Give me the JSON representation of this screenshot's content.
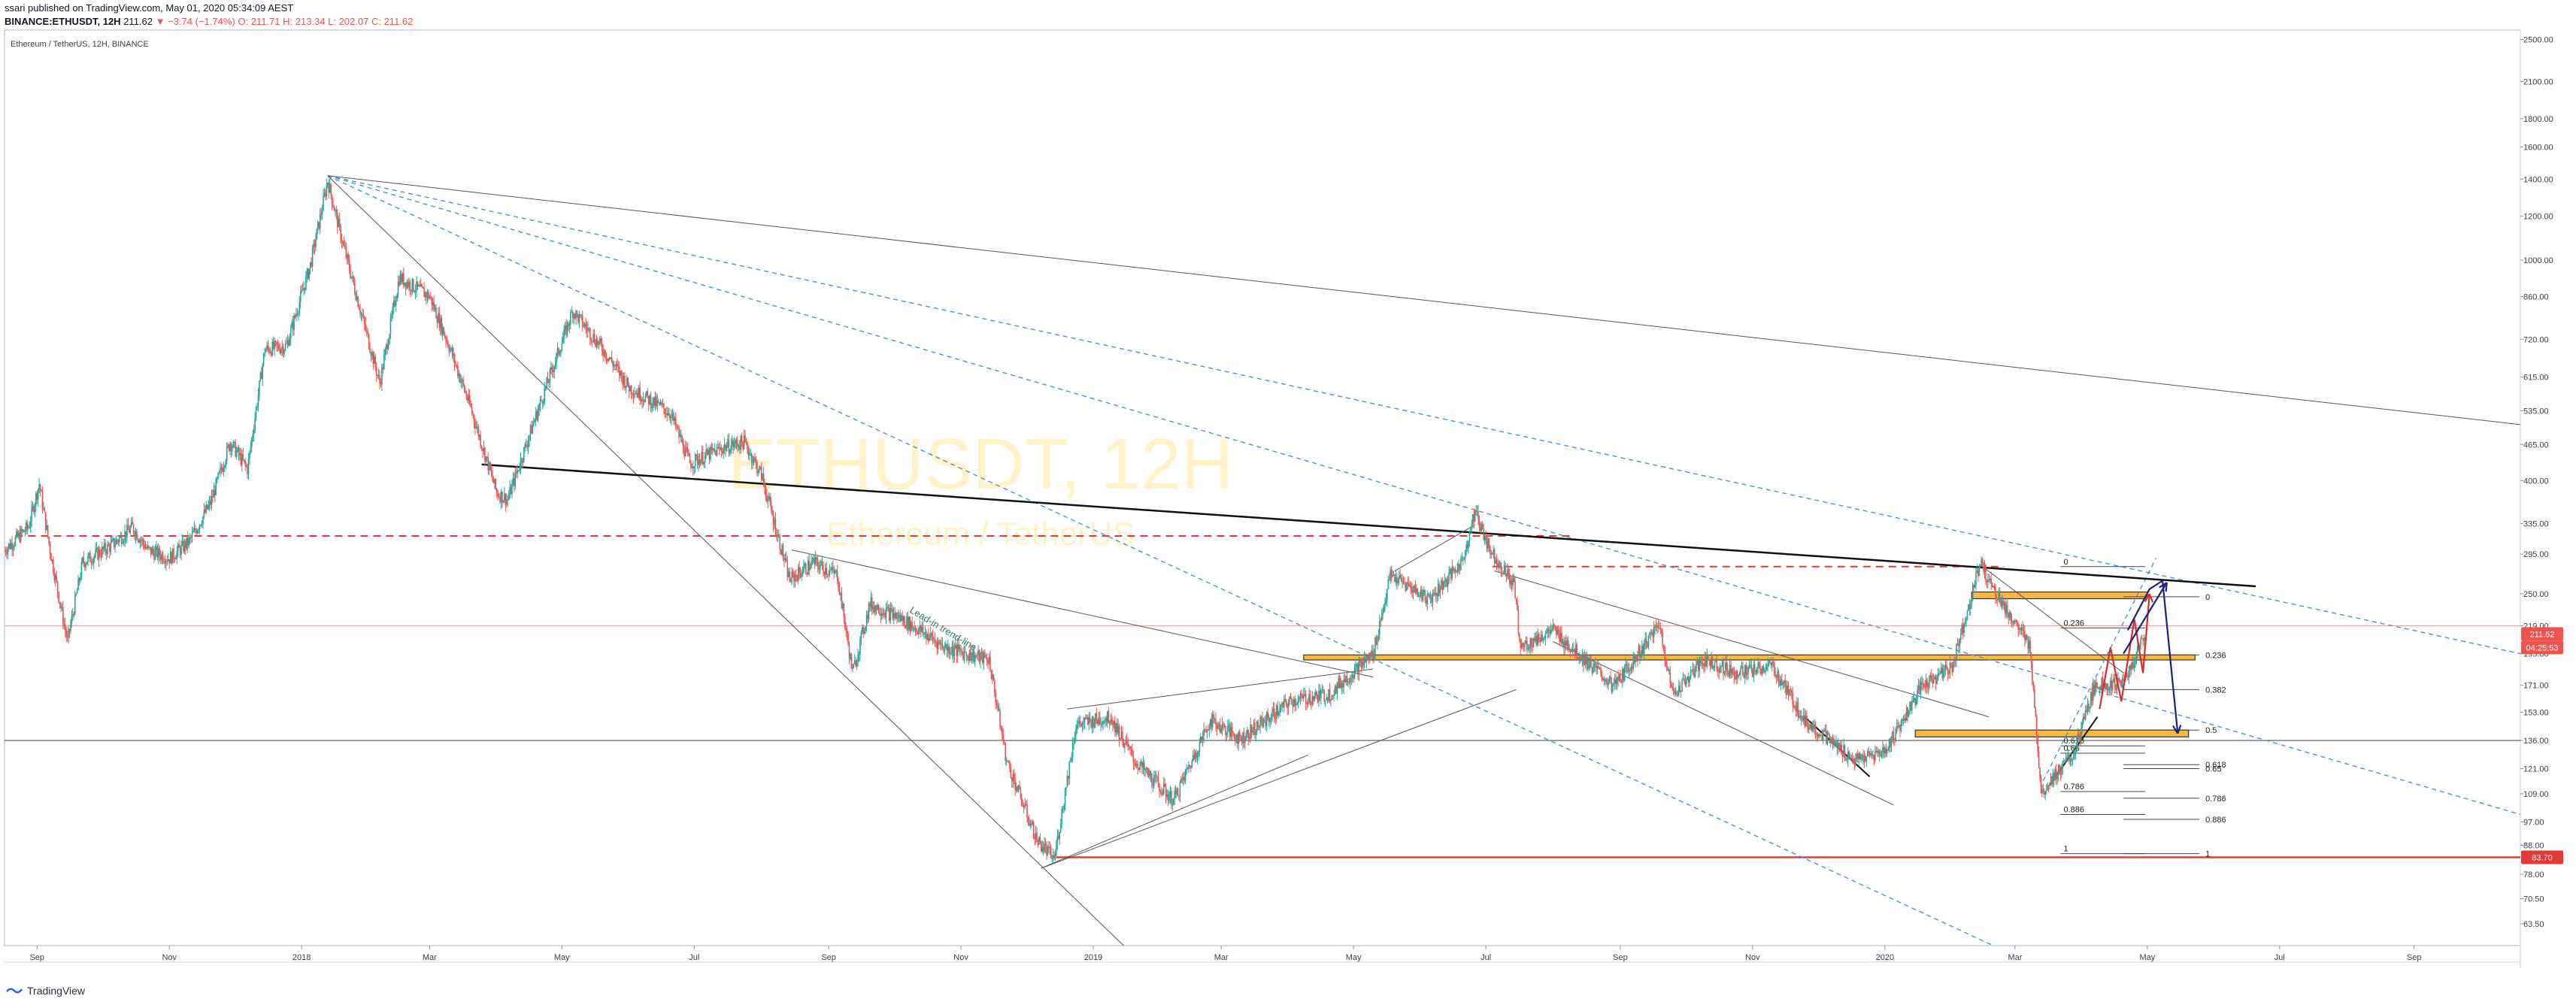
{
  "header": {
    "published": "ssari published on TradingView.com, May 01, 2020 05:34:09 AEST",
    "symbol": "BINANCE:ETHUSDT, 12H",
    "price": "211.62",
    "change": "▼ −3.74 (−1.74%)",
    "o": "O: 211.71",
    "h": "H: 213.34",
    "l": "L: 202.07",
    "c": "C: 211.62"
  },
  "chart_title": "Ethereum / TetherUS, 12H, BINANCE",
  "watermark": {
    "main": "ETHUSDT, 12H",
    "sub": "Ethereum / TetherUS"
  },
  "footer": {
    "brand": "TradingView"
  },
  "colors": {
    "up": "#26a69a",
    "down": "#ef5350",
    "accent": "#2962ff",
    "zone": "#f5b945"
  },
  "chart_data": {
    "type": "candlestick",
    "symbol": "ETHUSDT",
    "interval": "12H",
    "exchange": "BINANCE",
    "y_scale": "log",
    "ylim": [
      58,
      2600
    ],
    "x_range": [
      "2017-08-17",
      "2020-10-20"
    ],
    "x_ticks": [
      {
        "label": "Sep",
        "date": "2017-09-01"
      },
      {
        "label": "Nov",
        "date": "2017-11-01"
      },
      {
        "label": "2018",
        "date": "2018-01-01"
      },
      {
        "label": "Mar",
        "date": "2018-03-01"
      },
      {
        "label": "May",
        "date": "2018-05-01"
      },
      {
        "label": "Jul",
        "date": "2018-07-01"
      },
      {
        "label": "Sep",
        "date": "2018-09-01"
      },
      {
        "label": "Nov",
        "date": "2018-11-01"
      },
      {
        "label": "2019",
        "date": "2019-01-01"
      },
      {
        "label": "Mar",
        "date": "2019-03-01"
      },
      {
        "label": "May",
        "date": "2019-05-01"
      },
      {
        "label": "Jul",
        "date": "2019-07-01"
      },
      {
        "label": "Sep",
        "date": "2019-09-01"
      },
      {
        "label": "Nov",
        "date": "2019-11-01"
      },
      {
        "label": "2020",
        "date": "2020-01-01"
      },
      {
        "label": "Mar",
        "date": "2020-03-01"
      },
      {
        "label": "May",
        "date": "2020-05-01"
      },
      {
        "label": "Jul",
        "date": "2020-07-01"
      },
      {
        "label": "Sep",
        "date": "2020-09-01"
      }
    ],
    "y_ticks": [
      "2500.00",
      "2100.00",
      "1800.00",
      "1600.00",
      "1400.00",
      "1200.00",
      "1000.00",
      "860.00",
      "720.00",
      "615.00",
      "535.00",
      "465.00",
      "400.00",
      "335.00",
      "295.00",
      "250.00",
      "219.00",
      "195.00",
      "171.00",
      "153.00",
      "136.00",
      "121.00",
      "109.00",
      "97.00",
      "88.00",
      "78.00",
      "70.50",
      "63.50"
    ],
    "price_path": [
      [
        "2017-08-17",
        300
      ],
      [
        "2017-08-28",
        330
      ],
      [
        "2017-09-02",
        395
      ],
      [
        "2017-09-07",
        300
      ],
      [
        "2017-09-15",
        205
      ],
      [
        "2017-09-22",
        285
      ],
      [
        "2017-10-05",
        305
      ],
      [
        "2017-10-15",
        330
      ],
      [
        "2017-10-22",
        300
      ],
      [
        "2017-11-01",
        290
      ],
      [
        "2017-11-10",
        310
      ],
      [
        "2017-11-20",
        365
      ],
      [
        "2017-11-29",
        470
      ],
      [
        "2017-12-07",
        420
      ],
      [
        "2017-12-15",
        690
      ],
      [
        "2017-12-25",
        700
      ],
      [
        "2018-01-05",
        980
      ],
      [
        "2018-01-13",
        1390
      ],
      [
        "2018-01-20",
        1070
      ],
      [
        "2018-02-06",
        600
      ],
      [
        "2018-02-15",
        930
      ],
      [
        "2018-03-01",
        860
      ],
      [
        "2018-03-10",
        700
      ],
      [
        "2018-03-20",
        540
      ],
      [
        "2018-04-01",
        380
      ],
      [
        "2018-04-06",
        370
      ],
      [
        "2018-04-18",
        510
      ],
      [
        "2018-05-06",
        810
      ],
      [
        "2018-05-20",
        690
      ],
      [
        "2018-06-01",
        590
      ],
      [
        "2018-06-20",
        530
      ],
      [
        "2018-06-29",
        430
      ],
      [
        "2018-07-15",
        460
      ],
      [
        "2018-07-24",
        470
      ],
      [
        "2018-08-01",
        410
      ],
      [
        "2018-08-14",
        265
      ],
      [
        "2018-08-25",
        285
      ],
      [
        "2018-09-05",
        270
      ],
      [
        "2018-09-12",
        180
      ],
      [
        "2018-09-20",
        240
      ],
      [
        "2018-10-05",
        225
      ],
      [
        "2018-10-25",
        200
      ],
      [
        "2018-11-14",
        190
      ],
      [
        "2018-11-22",
        125
      ],
      [
        "2018-12-06",
        90
      ],
      [
        "2018-12-14",
        83
      ],
      [
        "2018-12-24",
        145
      ],
      [
        "2019-01-09",
        150
      ],
      [
        "2019-01-20",
        125
      ],
      [
        "2019-02-07",
        106
      ],
      [
        "2019-02-24",
        148
      ],
      [
        "2019-03-10",
        137
      ],
      [
        "2019-04-02",
        160
      ],
      [
        "2019-04-20",
        165
      ],
      [
        "2019-05-10",
        195
      ],
      [
        "2019-05-18",
        270
      ],
      [
        "2019-06-05",
        245
      ],
      [
        "2019-06-20",
        285
      ],
      [
        "2019-06-26",
        352
      ],
      [
        "2019-07-03",
        300
      ],
      [
        "2019-07-14",
        260
      ],
      [
        "2019-07-17",
        200
      ],
      [
        "2019-08-01",
        215
      ],
      [
        "2019-08-29",
        170
      ],
      [
        "2019-09-19",
        220
      ],
      [
        "2019-09-25",
        165
      ],
      [
        "2019-10-10",
        190
      ],
      [
        "2019-10-25",
        180
      ],
      [
        "2019-11-10",
        185
      ],
      [
        "2019-11-25",
        148
      ],
      [
        "2019-12-18",
        125
      ],
      [
        "2020-01-01",
        130
      ],
      [
        "2020-01-18",
        170
      ],
      [
        "2020-02-01",
        185
      ],
      [
        "2020-02-14",
        285
      ],
      [
        "2020-02-20",
        255
      ],
      [
        "2020-03-08",
        200
      ],
      [
        "2020-03-13",
        110
      ],
      [
        "2020-03-17",
        115
      ],
      [
        "2020-03-28",
        128
      ],
      [
        "2020-04-07",
        172
      ],
      [
        "2020-04-20",
        172
      ],
      [
        "2020-04-30",
        211.62
      ]
    ],
    "current_price": 211.62,
    "current_price_label": "211.62",
    "countdown_label": "04:25:53",
    "support_price": 83.7,
    "support_label": "83.70",
    "h_lines": [
      {
        "price": 318,
        "style": "dashed",
        "color": "#e53935",
        "from": "2017-08-22",
        "to": "2019-08-10"
      },
      {
        "price": 280,
        "style": "dashed",
        "color": "#e53935",
        "from": "2019-07-04",
        "to": "2020-02-25"
      },
      {
        "price": 136,
        "style": "solid",
        "color": "#555555",
        "from": "2017-08-17",
        "to": "2020-10-20"
      },
      {
        "price": 219,
        "style": "solid",
        "color": "#f3a3a3",
        "from": "2017-08-17",
        "to": "2020-10-20"
      },
      {
        "price": 83.7,
        "style": "solid",
        "color": "#e53935",
        "from": "2018-12-15",
        "to": "2020-10-20"
      }
    ],
    "trend_lines": [
      {
        "p1": [
          "2018-01-13",
          1420
        ],
        "p2": [
          "2020-10-20",
          505
        ],
        "color": "#555555",
        "width": 1
      },
      {
        "p1": [
          "2018-01-13",
          1420
        ],
        "p2": [
          "2019-01-15",
          58
        ],
        "color": "#555555",
        "width": 1
      },
      {
        "p1": [
          "2018-03-25",
          428
        ],
        "p2": [
          "2020-06-20",
          258
        ],
        "color": "#111111",
        "width": 2.5
      },
      {
        "p1": [
          "2018-08-15",
          300
        ],
        "p2": [
          "2019-05-10",
          177
        ],
        "color": "#555555",
        "width": 1
      },
      {
        "p1": [
          "2018-12-08",
          80
        ],
        "p2": [
          "2019-04-10",
          128
        ],
        "color": "#555555",
        "width": 1
      },
      {
        "p1": [
          "2018-12-20",
          155
        ],
        "p2": [
          "2019-05-10",
          183
        ],
        "color": "#555555",
        "width": 1
      },
      {
        "p1": [
          "2018-12-08",
          80
        ],
        "p2": [
          "2019-07-15",
          168
        ],
        "color": "#555555",
        "width": 1
      },
      {
        "p1": [
          "2019-05-20",
          275
        ],
        "p2": [
          "2019-06-26",
          333
        ],
        "color": "#555555",
        "width": 1
      },
      {
        "p1": [
          "2019-07-05",
          275
        ],
        "p2": [
          "2020-02-18",
          150
        ],
        "color": "#555555",
        "width": 1
      },
      {
        "p1": [
          "2019-08-01",
          205
        ],
        "p2": [
          "2020-01-05",
          104
        ],
        "color": "#555555",
        "width": 1
      },
      {
        "p1": [
          "2019-11-25",
          150
        ],
        "p2": [
          "2019-12-25",
          117
        ],
        "color": "#111111",
        "width": 2
      },
      {
        "p1": [
          "2020-02-15",
          280
        ],
        "p2": [
          "2020-04-20",
          180
        ],
        "color": "#555555",
        "width": 1
      },
      {
        "p1": [
          "2020-03-17",
          113
        ],
        "p2": [
          "2020-04-08",
          150
        ],
        "color": "#111111",
        "width": 2
      }
    ],
    "fan_lines": [
      {
        "p1": [
          "2018-01-13",
          1420
        ],
        "p2": [
          "2020-10-20",
          195
        ]
      },
      {
        "p1": [
          "2018-01-13",
          1420
        ],
        "p2": [
          "2020-10-20",
          100
        ]
      },
      {
        "p1": [
          "2018-01-13",
          1420
        ],
        "p2": [
          "2020-02-20",
          58
        ]
      },
      {
        "p1": [
          "2020-03-14",
          115
        ],
        "p2": [
          "2020-05-05",
          290
        ]
      }
    ],
    "zones": [
      {
        "from": "2019-04-08",
        "to": "2020-05-23",
        "top": 194,
        "bottom": 190
      },
      {
        "from": "2020-02-10",
        "to": "2020-05-01",
        "top": 252,
        "bottom": 245
      },
      {
        "from": "2020-01-15",
        "to": "2020-05-20",
        "top": 142,
        "bottom": 138
      }
    ],
    "fib_left": {
      "from": "2020-03-22",
      "to": "2020-04-30",
      "levels": [
        {
          "label": "0",
          "price": 280
        },
        {
          "label": "0.236",
          "price": 217
        },
        {
          "label": "0.618",
          "price": 133
        },
        {
          "label": "0.65",
          "price": 129
        },
        {
          "label": "0.786",
          "price": 110
        },
        {
          "label": "0.886",
          "price": 100
        },
        {
          "label": "1",
          "price": 85
        }
      ]
    },
    "fib_right": {
      "from": "2020-04-20",
      "to": "2020-05-25",
      "levels": [
        {
          "label": "0",
          "price": 247
        },
        {
          "label": "0.236",
          "price": 194
        },
        {
          "label": "0.382",
          "price": 168
        },
        {
          "label": "0.5",
          "price": 142
        },
        {
          "label": "0.618",
          "price": 123
        },
        {
          "label": "0.65",
          "price": 121
        },
        {
          "label": "0.786",
          "price": 107
        },
        {
          "label": "0.886",
          "price": 98
        },
        {
          "label": "1",
          "price": 85
        }
      ]
    },
    "projections": [
      {
        "color": "#d32f2f",
        "points": [
          [
            "2020-04-09",
            155
          ],
          [
            "2020-04-14",
            200
          ],
          [
            "2020-04-19",
            160
          ],
          [
            "2020-04-25",
            225
          ],
          [
            "2020-04-29",
            180
          ],
          [
            "2020-05-02",
            250
          ]
        ]
      },
      {
        "color": "#1a237e",
        "points": [
          [
            "2020-04-22",
            215
          ],
          [
            "2020-05-02",
            255
          ],
          [
            "2020-05-08",
            264
          ],
          [
            "2020-05-15",
            140
          ]
        ]
      },
      {
        "color": "#1a237e",
        "points": [
          [
            "2020-04-20",
            195
          ],
          [
            "2020-05-10",
            262
          ]
        ]
      }
    ],
    "annotations": [
      {
        "text": "Lead-in trend-line",
        "date": "2018-10-08",
        "price": 232,
        "angle": 31,
        "color": "#2e7d6b"
      }
    ]
  }
}
